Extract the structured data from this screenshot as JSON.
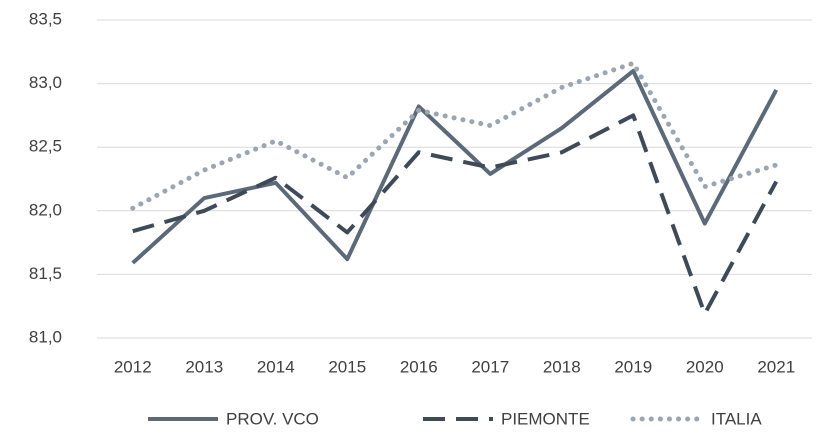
{
  "chart_data": {
    "type": "line",
    "categories": [
      "2012",
      "2013",
      "2014",
      "2015",
      "2016",
      "2017",
      "2018",
      "2019",
      "2020",
      "2021"
    ],
    "series": [
      {
        "name": "PROV. VCO",
        "color": "#5b6978",
        "style": "solid",
        "values": [
          81.59,
          82.1,
          82.22,
          81.62,
          82.82,
          82.29,
          82.65,
          83.1,
          81.9,
          82.95
        ]
      },
      {
        "name": "PIEMONTE",
        "color": "#3e4a58",
        "style": "dashed",
        "values": [
          81.84,
          82.0,
          82.26,
          81.83,
          82.46,
          82.34,
          82.46,
          82.75,
          81.19,
          82.23
        ]
      },
      {
        "name": "ITALIA",
        "color": "#9ba6b2",
        "style": "dotted",
        "values": [
          82.02,
          82.32,
          82.55,
          82.26,
          82.79,
          82.67,
          82.97,
          83.16,
          82.19,
          82.36
        ]
      }
    ],
    "ylim": [
      81.0,
      83.5
    ],
    "yticks": [
      {
        "value": 81.0,
        "label": "81,0"
      },
      {
        "value": 81.5,
        "label": "81,5"
      },
      {
        "value": 82.0,
        "label": "82,0"
      },
      {
        "value": 82.5,
        "label": "82,5"
      },
      {
        "value": 83.0,
        "label": "83,0"
      },
      {
        "value": 83.5,
        "label": "83,5"
      }
    ],
    "grid": true,
    "legend": "bottom"
  }
}
